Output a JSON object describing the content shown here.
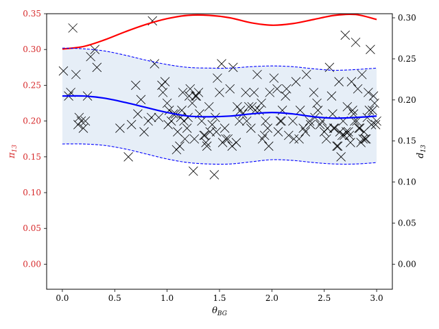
{
  "colors": {
    "left_axis": "#d62728",
    "red_curve": "#ff0000",
    "blue_curve": "#0000ff",
    "band_fill": "#e6eef7",
    "markers": "#000000"
  },
  "chart_data": {
    "type": "line",
    "xlabel": "θ_BG",
    "ylabel_left": "π_13",
    "ylabel_right": "d_13",
    "xlim": [
      -0.15,
      3.15
    ],
    "ylim_left": [
      -0.035,
      0.35
    ],
    "ylim_right": [
      -0.0305,
      0.305
    ],
    "x_ticks": [
      "0.0",
      "0.5",
      "1.0",
      "1.5",
      "2.0",
      "2.5",
      "3.0"
    ],
    "left_ticks": [
      "0.00",
      "0.05",
      "0.10",
      "0.15",
      "0.20",
      "0.25",
      "0.30",
      "0.35"
    ],
    "right_ticks": [
      "0.00",
      "0.05",
      "0.10",
      "0.15",
      "0.20",
      "0.25",
      "0.30"
    ],
    "grid": false,
    "series": [
      {
        "axis": "right",
        "style": "solid",
        "color": "red",
        "x": [
          0.0,
          0.2,
          0.4,
          0.6,
          0.8,
          1.0,
          1.2,
          1.4,
          1.6,
          1.8,
          2.0,
          2.2,
          2.4,
          2.6,
          2.8,
          3.0
        ],
        "y": [
          0.262,
          0.265,
          0.273,
          0.283,
          0.292,
          0.299,
          0.303,
          0.303,
          0.3,
          0.294,
          0.291,
          0.293,
          0.298,
          0.303,
          0.304,
          0.298
        ]
      },
      {
        "axis": "left",
        "style": "solid",
        "color": "blue",
        "x": [
          0.0,
          0.2,
          0.4,
          0.6,
          0.8,
          1.0,
          1.2,
          1.4,
          1.6,
          1.8,
          2.0,
          2.2,
          2.4,
          2.6,
          2.8,
          3.0
        ],
        "y": [
          0.235,
          0.235,
          0.232,
          0.226,
          0.219,
          0.212,
          0.207,
          0.206,
          0.207,
          0.21,
          0.212,
          0.21,
          0.206,
          0.204,
          0.205,
          0.207
        ]
      },
      {
        "axis": "left",
        "style": "dashed",
        "color": "blue",
        "x": [
          0.0,
          0.2,
          0.4,
          0.6,
          0.8,
          1.0,
          1.2,
          1.4,
          1.6,
          1.8,
          2.0,
          2.2,
          2.4,
          2.6,
          2.8,
          3.0
        ],
        "y": [
          0.302,
          0.301,
          0.298,
          0.292,
          0.285,
          0.279,
          0.275,
          0.274,
          0.274,
          0.276,
          0.277,
          0.276,
          0.273,
          0.271,
          0.272,
          0.274
        ]
      },
      {
        "axis": "left",
        "style": "dashed",
        "color": "blue",
        "x": [
          0.0,
          0.2,
          0.4,
          0.6,
          0.8,
          1.0,
          1.2,
          1.4,
          1.6,
          1.8,
          2.0,
          2.2,
          2.4,
          2.6,
          2.8,
          3.0
        ],
        "y": [
          0.168,
          0.168,
          0.166,
          0.161,
          0.154,
          0.147,
          0.142,
          0.14,
          0.14,
          0.143,
          0.146,
          0.145,
          0.142,
          0.14,
          0.14,
          0.142
        ]
      }
    ],
    "scatter": {
      "axis": "left",
      "marker": "x",
      "x": [
        0.01,
        0.1,
        0.18,
        0.08,
        0.13,
        0.16,
        0.2,
        0.24,
        0.27,
        0.31,
        0.33,
        0.06,
        0.15,
        0.22,
        0.55,
        0.63,
        0.66,
        0.72,
        0.7,
        0.75,
        0.82,
        0.86,
        0.88,
        0.92,
        0.96,
        0.98,
        1.0,
        1.02,
        1.04,
        1.08,
        1.1,
        1.12,
        1.14,
        1.15,
        1.17,
        1.2,
        1.22,
        1.25,
        1.27,
        1.3,
        1.33,
        1.36,
        1.38,
        1.4,
        1.43,
        1.45,
        1.48,
        1.5,
        1.52,
        1.55,
        1.58,
        1.6,
        1.63,
        1.66,
        1.7,
        1.72,
        1.75,
        1.78,
        1.8,
        1.83,
        1.86,
        1.88,
        1.9,
        1.93,
        1.96,
        1.98,
        2.02,
        2.05,
        2.08,
        2.1,
        2.13,
        2.16,
        2.2,
        2.23,
        2.26,
        2.3,
        2.33,
        2.36,
        2.4,
        2.43,
        2.46,
        2.48,
        2.5,
        2.52,
        2.55,
        2.57,
        2.6,
        2.62,
        2.64,
        2.66,
        2.68,
        2.7,
        2.72,
        2.74,
        2.76,
        2.78,
        2.8,
        2.82,
        2.84,
        2.86,
        2.88,
        2.9,
        2.92,
        2.94,
        2.96,
        2.98,
        3.0,
        2.71,
        2.79,
        2.93,
        2.85,
        2.95,
        2.65,
        2.75,
        2.81,
        2.89,
        2.97,
        2.99,
        2.69,
        2.77,
        2.83,
        2.87,
        2.91,
        1.09,
        1.16,
        1.24,
        1.31,
        1.41,
        1.56,
        1.67,
        1.84,
        1.94,
        2.14,
        2.32,
        2.44,
        2.58,
        0.95,
        1.01,
        1.06,
        1.19,
        1.28,
        1.35,
        1.46,
        1.62,
        1.76,
        1.91,
        2.06,
        2.27,
        2.37,
        2.53,
        0.85,
        0.78,
        1.13,
        1.21,
        1.26,
        1.37,
        1.47,
        1.53,
        1.69,
        1.81,
        1.97,
        2.09,
        2.21,
        2.41,
        2.59,
        2.63,
        2.73,
        2.67
      ],
      "y": [
        0.27,
        0.33,
        0.2,
        0.24,
        0.265,
        0.205,
        0.19,
        0.235,
        0.29,
        0.3,
        0.275,
        0.235,
        0.195,
        0.2,
        0.19,
        0.15,
        0.195,
        0.21,
        0.25,
        0.23,
        0.2,
        0.34,
        0.28,
        0.205,
        0.24,
        0.255,
        0.225,
        0.215,
        0.2,
        0.21,
        0.185,
        0.165,
        0.215,
        0.24,
        0.175,
        0.205,
        0.245,
        0.13,
        0.235,
        0.24,
        0.2,
        0.18,
        0.165,
        0.22,
        0.195,
        0.125,
        0.26,
        0.24,
        0.28,
        0.19,
        0.175,
        0.245,
        0.275,
        0.17,
        0.215,
        0.21,
        0.24,
        0.22,
        0.19,
        0.24,
        0.265,
        0.215,
        0.225,
        0.18,
        0.19,
        0.24,
        0.26,
        0.245,
        0.2,
        0.215,
        0.235,
        0.18,
        0.2,
        0.255,
        0.175,
        0.19,
        0.265,
        0.2,
        0.24,
        0.225,
        0.195,
        0.2,
        0.185,
        0.175,
        0.275,
        0.235,
        0.19,
        0.165,
        0.255,
        0.15,
        0.2,
        0.32,
        0.22,
        0.18,
        0.255,
        0.21,
        0.31,
        0.245,
        0.19,
        0.265,
        0.185,
        0.175,
        0.24,
        0.3,
        0.215,
        0.225,
        0.2,
        0.185,
        0.2,
        0.215,
        0.17,
        0.195,
        0.185,
        0.17,
        0.2,
        0.175,
        0.235,
        0.195,
        0.18,
        0.215,
        0.19,
        0.175,
        0.205,
        0.16,
        0.2,
        0.225,
        0.21,
        0.185,
        0.175,
        0.22,
        0.215,
        0.2,
        0.245,
        0.185,
        0.215,
        0.21,
        0.25,
        0.195,
        0.21,
        0.19,
        0.235,
        0.18,
        0.205,
        0.165,
        0.2,
        0.175,
        0.185,
        0.215,
        0.195,
        0.19,
        0.205,
        0.185,
        0.205,
        0.235,
        0.175,
        0.17,
        0.185,
        0.17,
        0.2,
        0.22,
        0.165,
        0.2,
        0.175,
        0.205,
        0.19,
        0.165,
        0.185,
        0.18
      ]
    }
  }
}
